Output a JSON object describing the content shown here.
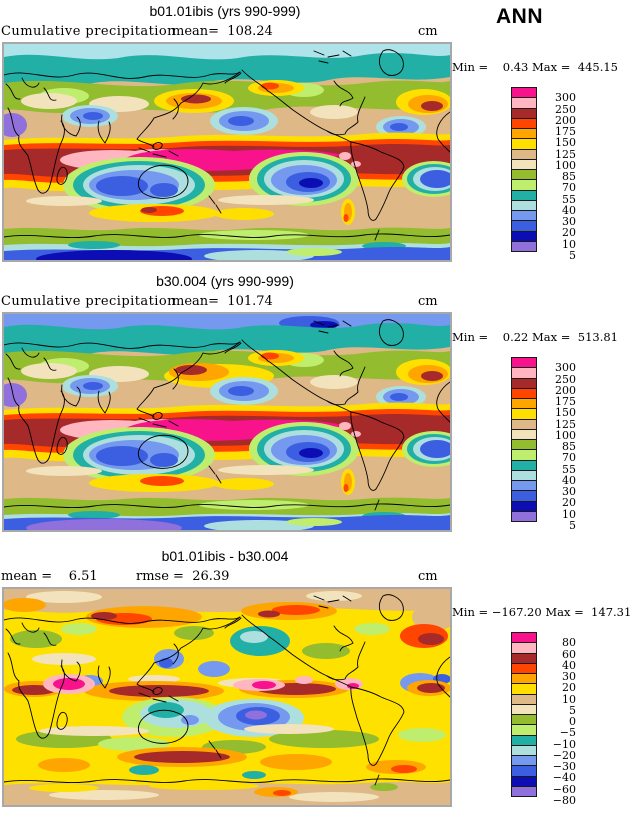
{
  "header": {
    "season_label": "ANN"
  },
  "chart_data": [
    {
      "type": "heatmap",
      "panel": "case1",
      "title": "b01.01ibis (yrs 990-999)",
      "variable": "Cumulative precipitation",
      "season": "ANN",
      "units": "cm",
      "stats": {
        "mean": 108.24,
        "min": 0.43,
        "max": 445.15
      },
      "display": {
        "mean_text": "mean=  108.24",
        "minmax_text": "Min =    0.43 Max =  445.15"
      },
      "levels": [
        5,
        10,
        20,
        30,
        40,
        55,
        70,
        85,
        100,
        125,
        150,
        175,
        200,
        250,
        300
      ],
      "colorbar": "precip"
    },
    {
      "type": "heatmap",
      "panel": "case2",
      "title": "b30.004 (yrs 990-999)",
      "variable": "Cumulative precipitation",
      "season": "ANN",
      "units": "cm",
      "stats": {
        "mean": 101.74,
        "min": 0.22,
        "max": 513.81
      },
      "display": {
        "mean_text": "mean=  101.74",
        "minmax_text": "Min =    0.22 Max =  513.81"
      },
      "levels": [
        5,
        10,
        20,
        30,
        40,
        55,
        70,
        85,
        100,
        125,
        150,
        175,
        200,
        250,
        300
      ],
      "colorbar": "precip"
    },
    {
      "type": "heatmap",
      "panel": "difference",
      "title": "b01.01ibis - b30.004",
      "season": "ANN",
      "units": "cm",
      "stats": {
        "mean": 6.51,
        "rmse": 26.39,
        "min": -167.2,
        "max": 147.31
      },
      "display": {
        "mean_text": "mean =    6.51",
        "rmse_text": "rmse =  26.39",
        "minmax_text": "Min = −167.20 Max =  147.31"
      },
      "levels": [
        -80,
        -60,
        -40,
        -30,
        -20,
        -10,
        -5,
        0,
        5,
        10,
        20,
        30,
        40,
        60,
        80
      ],
      "colorbar": "diff"
    }
  ],
  "colorbars": {
    "precip": {
      "labels": [
        "300",
        "250",
        "200",
        "175",
        "150",
        "125",
        "100",
        "85",
        "70",
        "55",
        "40",
        "30",
        "20",
        "10",
        "5"
      ],
      "colors": [
        "#F8128C",
        "#FFB6C1",
        "#A62A2A",
        "#FF4500",
        "#FFA500",
        "#FFDF00",
        "#DEB887",
        "#F2E3BC",
        "#93BC2F",
        "#BFEE6E",
        "#22AFA5",
        "#AEDFDF",
        "#7599EE",
        "#3B5FE0",
        "#0D0DB4",
        "#9070DA"
      ]
    },
    "diff": {
      "labels": [
        "80",
        "60",
        "40",
        "30",
        "20",
        "10",
        "5",
        "0",
        "−5",
        "−10",
        "−20",
        "−30",
        "−40",
        "−60",
        "−80"
      ],
      "colors": [
        "#F8128C",
        "#FFB6C1",
        "#A62A2A",
        "#FF4500",
        "#FFA500",
        "#FFDF00",
        "#DEB887",
        "#F2E3BC",
        "#93BC2F",
        "#BFEE6E",
        "#22AFA5",
        "#AEDFDF",
        "#7599EE",
        "#3B5FE0",
        "#0D0DB4",
        "#9070DA"
      ]
    }
  }
}
